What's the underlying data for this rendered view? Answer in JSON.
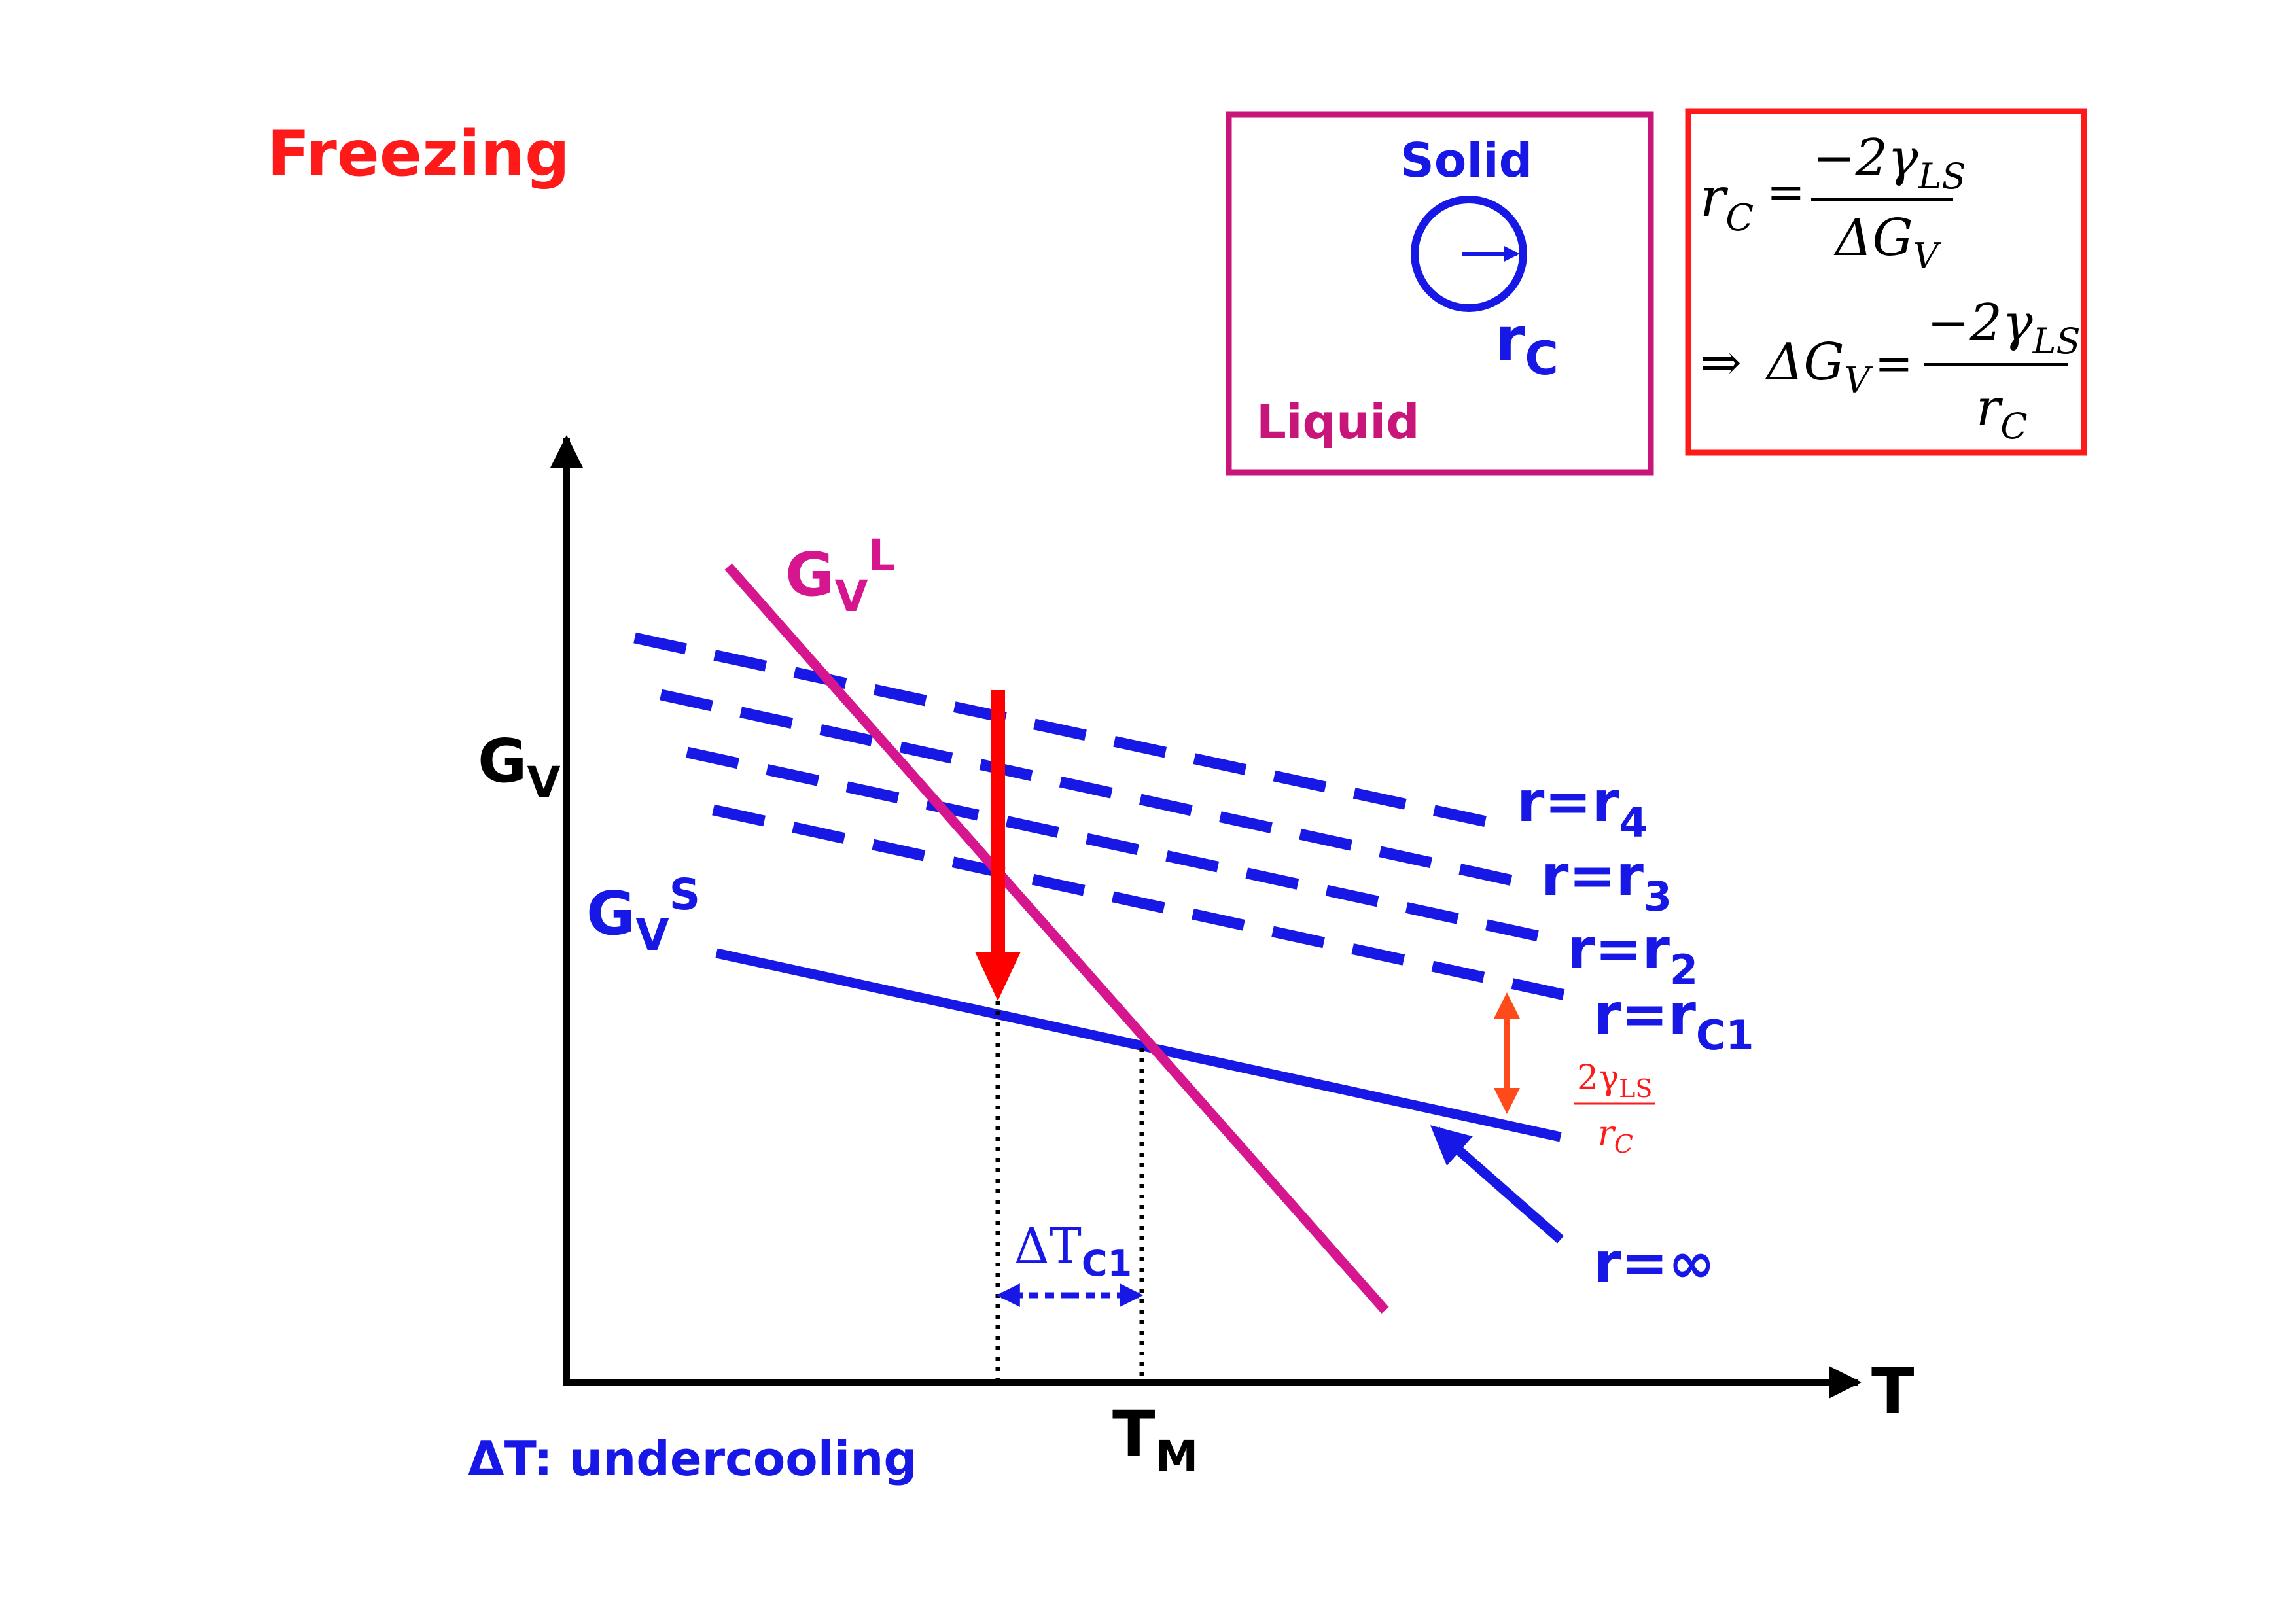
{
  "title": "Freezing",
  "inset": {
    "solid_label": "Solid",
    "liquid_label": "Liquid",
    "radius_symbol": "r",
    "radius_sub": "C"
  },
  "formula": {
    "line1": {
      "lhs_sym": "r",
      "lhs_sub": "C",
      "eq": "=",
      "num_main": "−2γ",
      "num_sub": "LS",
      "den_main": "ΔG",
      "den_sub": "V"
    },
    "line2": {
      "implies": "⇒",
      "lhs_main": "ΔG",
      "lhs_sub": "V",
      "eq": "=",
      "num_main": "−2γ",
      "num_sub": "LS",
      "den_main": "r",
      "den_sub": "C"
    }
  },
  "axes": {
    "y_label_main": "G",
    "y_label_sub": "V",
    "x_label": "T",
    "tm_main": "T",
    "tm_sub": "M"
  },
  "curves": {
    "liquid": {
      "main": "G",
      "sub": "V",
      "sup": "L"
    },
    "solid": {
      "main": "G",
      "sub": "V",
      "sup": "S"
    }
  },
  "radius_labels": [
    {
      "main": "r=r",
      "sub": "4"
    },
    {
      "main": "r=r",
      "sub": "3"
    },
    {
      "main": "r=r",
      "sub": "2"
    },
    {
      "main": "r=r",
      "sub": "C1"
    }
  ],
  "infinity_label": "r=∞",
  "gap_label": {
    "num_main": "2γ",
    "num_sub": "LS",
    "den_main": "r",
    "den_sub": "C"
  },
  "delta_t_label": {
    "main": "ΔT",
    "sub": "C1"
  },
  "undercooling_note": "ΔT: undercooling",
  "colors": {
    "title": "#ff1a1a",
    "liquid": "#d6168e",
    "solid": "#1818e6",
    "red_arrow": "#ff0000",
    "orange": "#ff4a1a",
    "black": "#000000",
    "inset_border": "#c8157a",
    "formula_border": "#ff1a1a"
  }
}
